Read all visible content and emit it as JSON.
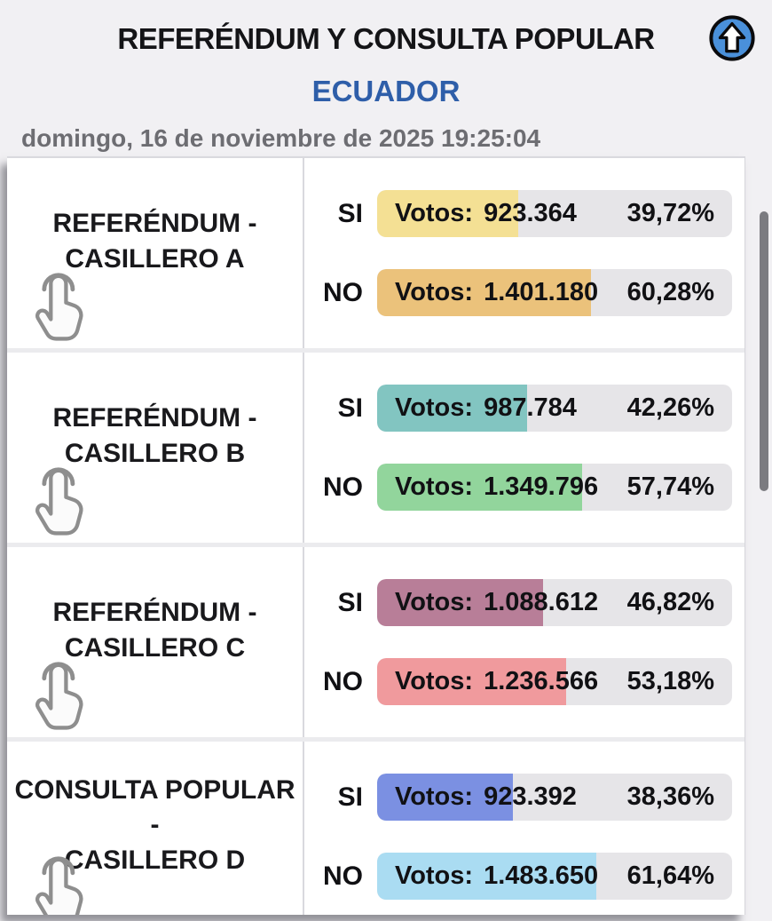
{
  "header": {
    "title": "REFERÉNDUM Y CONSULTA POPULAR",
    "subtitle": "ECUADOR",
    "datetime": "domingo, 16 de noviembre de 2025 19:25:04",
    "colors": {
      "title": "#141417",
      "subtitle": "#2e5ea9",
      "datetime": "#6d6d72",
      "scroll_icon_circle": "#4a90da"
    }
  },
  "results": {
    "votes_prefix": "Votos:",
    "track_color": "#e6e5e8",
    "sections": [
      {
        "id": "casillero-a",
        "title_line1": "REFERÉNDUM -",
        "title_line2": "CASILLERO A",
        "rows": [
          {
            "option": "SI",
            "votes": "923.364",
            "percent": 39.72,
            "percent_label": "39,72%",
            "fill_color": "#f4e094"
          },
          {
            "option": "NO",
            "votes": "1.401.180",
            "percent": 60.28,
            "percent_label": "60,28%",
            "fill_color": "#ebc27b"
          }
        ]
      },
      {
        "id": "casillero-b",
        "title_line1": "REFERÉNDUM -",
        "title_line2": "CASILLERO B",
        "rows": [
          {
            "option": "SI",
            "votes": "987.784",
            "percent": 42.26,
            "percent_label": "42,26%",
            "fill_color": "#82c5c1"
          },
          {
            "option": "NO",
            "votes": "1.349.796",
            "percent": 57.74,
            "percent_label": "57,74%",
            "fill_color": "#92d59c"
          }
        ]
      },
      {
        "id": "casillero-c",
        "title_line1": "REFERÉNDUM -",
        "title_line2": "CASILLERO C",
        "rows": [
          {
            "option": "SI",
            "votes": "1.088.612",
            "percent": 46.82,
            "percent_label": "46,82%",
            "fill_color": "#b87e98"
          },
          {
            "option": "NO",
            "votes": "1.236.566",
            "percent": 53.18,
            "percent_label": "53,18%",
            "fill_color": "#f09a9d"
          }
        ]
      },
      {
        "id": "casillero-d",
        "title_line1": "CONSULTA POPULAR -",
        "title_line2": "CASILLERO D",
        "rows": [
          {
            "option": "SI",
            "votes": "923.392",
            "percent": 38.36,
            "percent_label": "38,36%",
            "fill_color": "#7b90e2"
          },
          {
            "option": "NO",
            "votes": "1.483.650",
            "percent": 61.64,
            "percent_label": "61,64%",
            "fill_color": "#aadcf2"
          }
        ]
      }
    ]
  }
}
